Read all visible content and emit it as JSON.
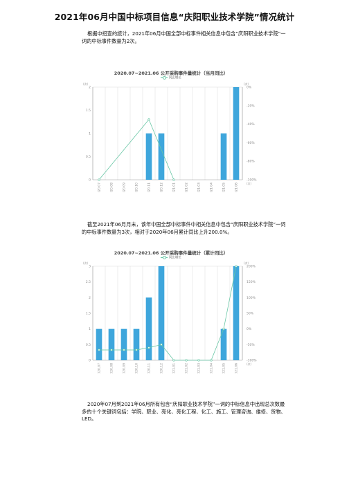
{
  "document": {
    "title": "2021年06月中国中标项目信息“庆阳职业技术学院”情况统计",
    "paragraph_1": "根据中招查的统计，2021年06月中国全部中标事件相关信息中包含“庆阳职业技术学院”一词的中标事件数量为2次。",
    "paragraph_2": "截至2021年06月月末，该年中国全部中标事件中相关信息中包含“庆阳职业技术学院”一词的中标事件数量为3次，相对于2020年06月累计同比上升200.0%。",
    "paragraph_3": "2020年07月到2021年06月所有包含“庆阳职业技术学院”一词的中标信息中出现总次数最多的十个关键词包括：学院、职业、亮化、亮化工程、化工、施工、管理咨询、维修、货物、LED。"
  },
  "colors": {
    "bar": "#3ea6dc",
    "line": "#69c7a6"
  },
  "chart_data": [
    {
      "type": "bar",
      "title": "2020.07~2021.06 公开采购事件量统计（当月同比）",
      "legend": "同比增长",
      "unit_left": "(次)",
      "unit_right": "(次)",
      "right_unit_bottom": "(次)",
      "categories": [
        "2020.07",
        "2020.08",
        "2020.09",
        "2020.10",
        "2020.11",
        "2020.12",
        "2021.01",
        "2021.02",
        "2021.03",
        "2021.04",
        "2021.05",
        "2021.06"
      ],
      "values": [
        0,
        0,
        0,
        0,
        1,
        1,
        0,
        0,
        0,
        0,
        1,
        2
      ],
      "yticks": [
        "0",
        "0.5",
        "1",
        "1.5",
        "2"
      ],
      "ylim": [
        0,
        2
      ],
      "right_ticks": [
        "-100%",
        "-80%",
        "-60%",
        "-40%",
        "-20%",
        "0%"
      ],
      "right_lim": [
        -100,
        0
      ],
      "line": {
        "name": "同比增长",
        "points": [
          [
            0,
            -100
          ],
          [
            4,
            -35
          ],
          [
            6,
            -100
          ]
        ]
      }
    },
    {
      "type": "bar",
      "title": "2020.07~2021.06 公开采购事件量统计（累计同比）",
      "legend": "同比增长",
      "unit_left": "(次)",
      "unit_right": "(次)",
      "right_unit_bottom": "(次)",
      "categories": [
        "2020.07",
        "2020.08",
        "2020.09",
        "2020.10",
        "2020.11",
        "2020.12",
        "2021.01",
        "2021.02",
        "2021.03",
        "2021.04",
        "2021.05",
        "2021.06"
      ],
      "values": [
        1,
        1,
        1,
        1,
        2,
        3,
        0,
        0,
        0,
        0,
        1,
        3
      ],
      "yticks": [
        "0",
        "0.5",
        "1",
        "1.5",
        "2",
        "2.5",
        "3"
      ],
      "ylim": [
        0,
        3
      ],
      "right_ticks": [
        "-100%",
        "-50%",
        "0%",
        "50%",
        "100%",
        "150%",
        "200%"
      ],
      "right_lim": [
        -100,
        200
      ],
      "line": {
        "name": "同比增长",
        "points": [
          [
            0,
            -67
          ],
          [
            1,
            -67
          ],
          [
            2,
            -67
          ],
          [
            3,
            -67
          ],
          [
            4,
            -60
          ],
          [
            5,
            -50
          ],
          [
            6,
            -100
          ],
          [
            7,
            -100
          ],
          [
            8,
            -100
          ],
          [
            9,
            -100
          ],
          [
            10,
            0
          ],
          [
            11,
            200
          ]
        ]
      }
    }
  ]
}
